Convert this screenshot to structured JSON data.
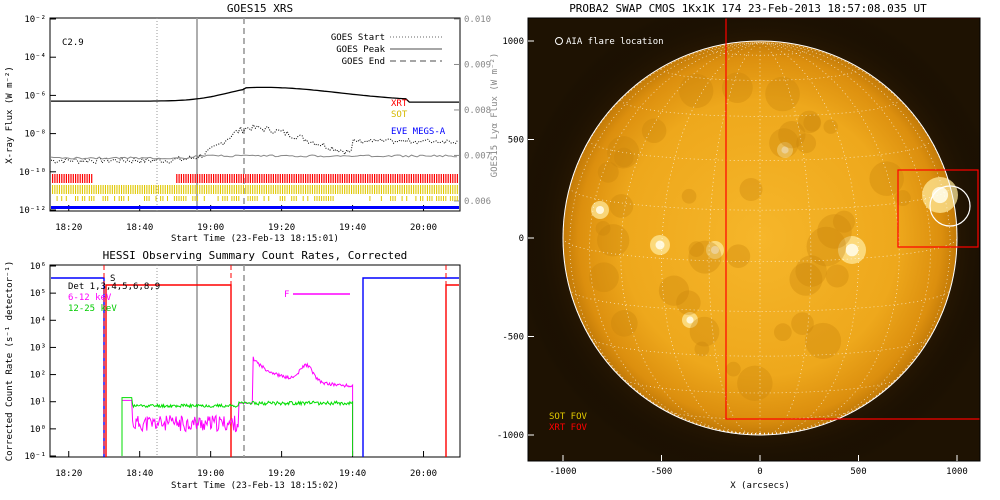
{
  "colors": {
    "xrt": "#ff0000",
    "sot": "#e0c800",
    "eve": "#0000ff",
    "hessi_det": "#0000ff",
    "hessi_low": "#ff00ff",
    "hessi_mid": "#00dd00"
  },
  "chart_data": [
    {
      "type": "line",
      "title": "GOES15 XRS",
      "xlabel": "Start Time (23-Feb-13 18:15:01)",
      "ylabel": "X-ray Flux (W m⁻²)",
      "y2label": "GOES15 Lyα Flux (W m⁻²)",
      "class_label": "C2.9",
      "yscale": "log",
      "ylim": [
        "10⁻¹²",
        "10⁻²"
      ],
      "y_ticks": [
        "10⁻²",
        "10⁻⁴",
        "10⁻⁶",
        "10⁻⁸",
        "10⁻¹⁰",
        "10⁻¹²"
      ],
      "y2_ticks": [
        "0.010",
        "0.009",
        "0.008",
        "0.007",
        "0.006"
      ],
      "x_ticks": [
        "18:20",
        "18:40",
        "19:00",
        "19:20",
        "19:40",
        "20:00"
      ],
      "legend": [
        "GOES Start",
        "GOES Peak",
        "GOES End"
      ],
      "instrument_labels": [
        "XRT",
        "SOT",
        "EVE MEGS-A"
      ],
      "markers": {
        "start": "18:45",
        "peak": "18:57",
        "end": "19:08"
      }
    },
    {
      "type": "line",
      "title": "HESSI Observing Summary Count Rates, Corrected",
      "xlabel": "Start Time (23-Feb-13 18:15:02)",
      "ylabel": "Corrected Count Rate (s⁻¹ detector⁻¹)",
      "yscale": "log",
      "y_ticks": [
        "10⁶",
        "10⁵",
        "10⁴",
        "10³",
        "10²",
        "10¹",
        "10⁰",
        "10⁻¹"
      ],
      "x_ticks": [
        "18:20",
        "18:40",
        "19:00",
        "19:20",
        "19:40",
        "20:00"
      ],
      "legend": [
        "Det 1,3,4,5,6,8,9",
        "6-12 keV",
        "12-25 keV"
      ],
      "flag_labels": [
        "S",
        "F"
      ]
    },
    {
      "type": "heatmap",
      "title": "PROBA2 SWAP CMOS 1Kx1K 174 23-Feb-2013 18:57:08.035 UT",
      "xlabel": "X (arcsecs)",
      "x_ticks": [
        "-1000",
        "-500",
        "0",
        "500",
        "1000"
      ],
      "y_ticks": [
        "1000",
        "500",
        "0",
        "-500",
        "-1000"
      ],
      "annotations": [
        "AIA flare location",
        "SOT FOV",
        "XRT FOV"
      ]
    }
  ]
}
